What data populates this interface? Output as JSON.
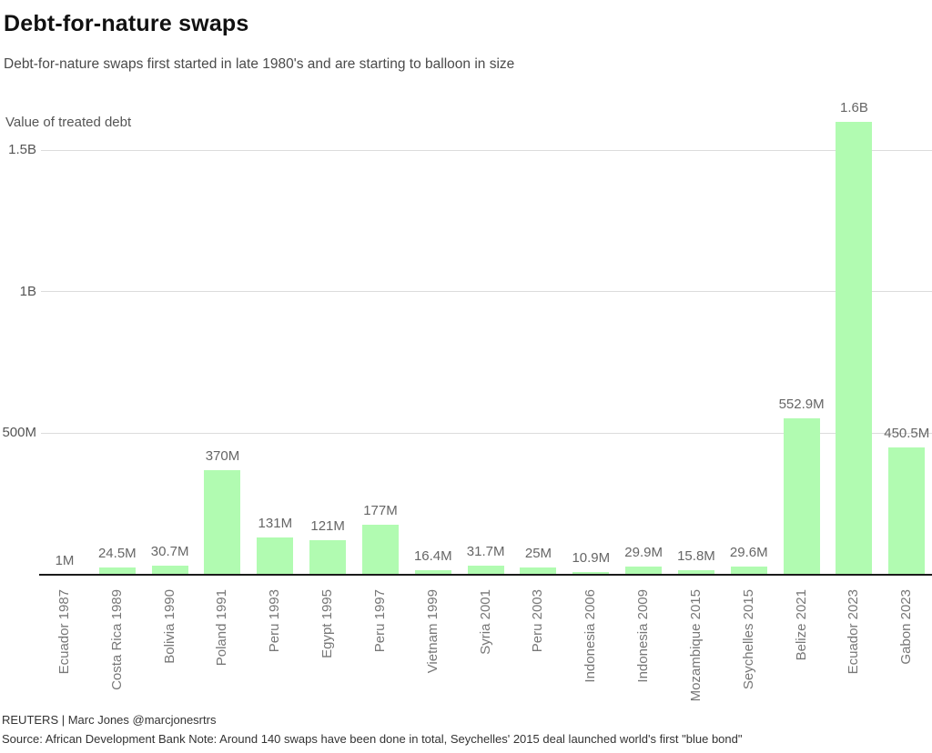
{
  "header": {
    "title": "Debt-for-nature swaps",
    "subtitle": "Debt-for-nature swaps first started in late 1980's and are starting to balloon in size"
  },
  "chart_data": {
    "type": "bar",
    "title": "Debt-for-nature swaps",
    "subtitle": "Debt-for-nature swaps first started in late 1980's and are starting to balloon in size",
    "axis_title": "Value of treated debt",
    "xlabel": "",
    "ylabel": "Value of treated debt",
    "categories": [
      "Ecuador 1987",
      "Costa Rica 1989",
      "Bolivia 1990",
      "Poland 1991",
      "Peru 1993",
      "Egypt 1995",
      "Peru 1997",
      "Vietnam 1999",
      "Syria 2001",
      "Peru 2003",
      "Indonesia 2006",
      "Indonesia 2009",
      "Mozambique 2015",
      "Seychelles 2015",
      "Belize 2021",
      "Ecuador 2023",
      "Gabon 2023"
    ],
    "values_millions": [
      1,
      24.5,
      30.7,
      370,
      131,
      121,
      177,
      16.4,
      31.7,
      25,
      10.9,
      29.9,
      15.8,
      29.6,
      552.9,
      1600,
      450.5
    ],
    "value_labels": [
      "1M",
      "24.5M",
      "30.7M",
      "370M",
      "131M",
      "121M",
      "177M",
      "16.4M",
      "31.7M",
      "25M",
      "10.9M",
      "29.9M",
      "15.8M",
      "29.6M",
      "552.9M",
      "1.6B",
      "450.5M"
    ],
    "yticks": [
      {
        "label": "500M",
        "millions": 500
      },
      {
        "label": "1B",
        "millions": 1000
      },
      {
        "label": "1.5B",
        "millions": 1500
      }
    ],
    "ylim_millions": [
      0,
      1680
    ],
    "grid": "horizontal gridlines on, legend off",
    "bar_color": "#b1fbb1",
    "gridline_color": "#dcdcdc",
    "axis_line_color": "#1a1a1a"
  },
  "footer": {
    "credit": "REUTERS | Marc Jones @marcjonesrtrs",
    "source": "Source: African Development Bank Note: Around 140 swaps have been done in total, Seychelles' 2015 deal launched world's first \"blue bond\""
  }
}
